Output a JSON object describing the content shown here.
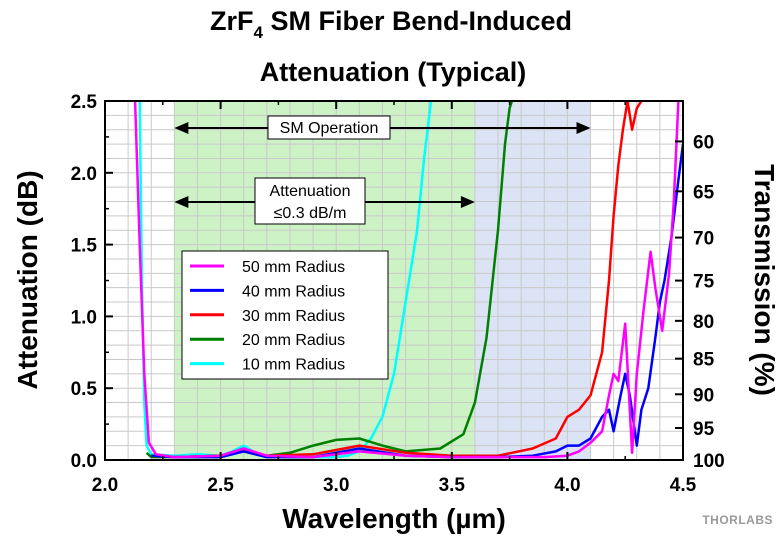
{
  "chart_data": {
    "type": "line",
    "title_line1_main": "ZrF",
    "title_line1_sub": "4",
    "title_line1_rest": " SM Fiber Bend-Induced",
    "title_line2": "Attenuation (Typical)",
    "xlabel": "Wavelength (µm)",
    "ylabel": "Attenuation (dB)",
    "y2label": "Transmission (%)",
    "xlim": [
      2.0,
      4.5
    ],
    "ylim": [
      0.0,
      2.5
    ],
    "x_ticks": [
      "2.0",
      "2.5",
      "3.0",
      "3.5",
      "4.0",
      "4.5"
    ],
    "y_ticks": [
      "0.0",
      "0.5",
      "1.0",
      "1.5",
      "2.0",
      "2.5"
    ],
    "y2_ticks": [
      "60",
      "65",
      "70",
      "75",
      "80",
      "85",
      "90",
      "95",
      "100"
    ],
    "grid": true,
    "legend_placement": "left-center",
    "bands": [
      {
        "label": "Attenuation ≤0.3 dB/m",
        "x_range": [
          2.3,
          3.6
        ],
        "color": "#ccf2c6"
      },
      {
        "label": "SM Operation",
        "x_range": [
          3.6,
          4.1
        ],
        "color": "#dce3f5"
      }
    ],
    "annotations": [
      {
        "text": "SM Operation",
        "x_range": [
          2.3,
          4.1
        ]
      },
      {
        "text_line1": "Attenuation",
        "text_line2": "≤0.3 dB/m",
        "x_range": [
          2.3,
          3.6
        ]
      }
    ],
    "series": [
      {
        "name": "50 mm Radius",
        "color": "#ff00ff",
        "x": [
          2.13,
          2.15,
          2.17,
          2.19,
          2.22,
          2.3,
          2.5,
          2.6,
          2.7,
          2.9,
          3.1,
          3.3,
          3.5,
          3.7,
          3.9,
          4.0,
          4.05,
          4.1,
          4.15,
          4.18,
          4.2,
          4.22,
          4.25,
          4.28,
          4.3,
          4.33,
          4.36,
          4.38,
          4.41,
          4.44,
          4.46,
          4.48
        ],
        "y": [
          2.5,
          1.5,
          0.6,
          0.12,
          0.04,
          0.02,
          0.03,
          0.08,
          0.03,
          0.02,
          0.06,
          0.03,
          0.02,
          0.02,
          0.02,
          0.03,
          0.06,
          0.12,
          0.2,
          0.45,
          0.6,
          0.55,
          0.95,
          0.05,
          0.6,
          1.05,
          1.45,
          1.2,
          0.9,
          1.3,
          1.8,
          2.5
        ]
      },
      {
        "name": "40 mm Radius",
        "color": "#0000ff",
        "x": [
          2.2,
          2.3,
          2.5,
          2.6,
          2.7,
          2.9,
          3.1,
          3.3,
          3.5,
          3.7,
          3.85,
          3.95,
          4.0,
          4.05,
          4.1,
          4.15,
          4.18,
          4.2,
          4.23,
          4.25,
          4.27,
          4.3,
          4.32,
          4.35,
          4.38,
          4.4,
          4.42,
          4.45,
          4.48,
          4.5
        ],
        "y": [
          0.03,
          0.02,
          0.02,
          0.06,
          0.02,
          0.02,
          0.08,
          0.03,
          0.02,
          0.02,
          0.03,
          0.06,
          0.1,
          0.1,
          0.15,
          0.3,
          0.35,
          0.2,
          0.45,
          0.6,
          0.45,
          0.1,
          0.35,
          0.5,
          0.85,
          1.1,
          1.25,
          1.55,
          1.95,
          2.2
        ]
      },
      {
        "name": "30 mm Radius",
        "color": "#ff0000",
        "x": [
          2.2,
          2.3,
          2.5,
          2.6,
          2.7,
          2.9,
          3.1,
          3.3,
          3.5,
          3.7,
          3.85,
          3.95,
          4.0,
          4.05,
          4.1,
          4.15,
          4.18,
          4.2,
          4.22,
          4.24,
          4.26,
          4.28,
          4.3,
          4.32
        ],
        "y": [
          0.03,
          0.02,
          0.03,
          0.07,
          0.03,
          0.04,
          0.1,
          0.05,
          0.03,
          0.03,
          0.08,
          0.15,
          0.3,
          0.35,
          0.45,
          0.75,
          1.25,
          1.7,
          2.05,
          2.3,
          2.5,
          2.3,
          2.45,
          2.5
        ]
      },
      {
        "name": "20 mm Radius",
        "color": "#008000",
        "x": [
          2.18,
          2.2,
          2.3,
          2.5,
          2.6,
          2.7,
          2.8,
          2.9,
          3.0,
          3.1,
          3.2,
          3.3,
          3.45,
          3.55,
          3.6,
          3.65,
          3.7,
          3.73,
          3.75,
          3.76
        ],
        "y": [
          0.05,
          0.02,
          0.02,
          0.03,
          0.06,
          0.03,
          0.05,
          0.1,
          0.14,
          0.15,
          0.1,
          0.06,
          0.08,
          0.18,
          0.4,
          0.85,
          1.6,
          2.2,
          2.45,
          2.5
        ]
      },
      {
        "name": "10 mm Radius",
        "color": "#00ffff",
        "x": [
          2.15,
          2.16,
          2.17,
          2.18,
          2.2,
          2.3,
          2.4,
          2.5,
          2.55,
          2.6,
          2.65,
          2.7,
          2.8,
          2.9,
          3.0,
          3.05,
          3.1,
          3.15,
          3.2,
          3.25,
          3.3,
          3.35,
          3.38,
          3.41
        ],
        "y": [
          2.5,
          1.2,
          0.4,
          0.1,
          0.04,
          0.03,
          0.04,
          0.03,
          0.06,
          0.1,
          0.05,
          0.03,
          0.02,
          0.02,
          0.02,
          0.03,
          0.06,
          0.15,
          0.3,
          0.6,
          1.1,
          1.6,
          2.1,
          2.5
        ]
      }
    ]
  },
  "brand": "THORLABS"
}
